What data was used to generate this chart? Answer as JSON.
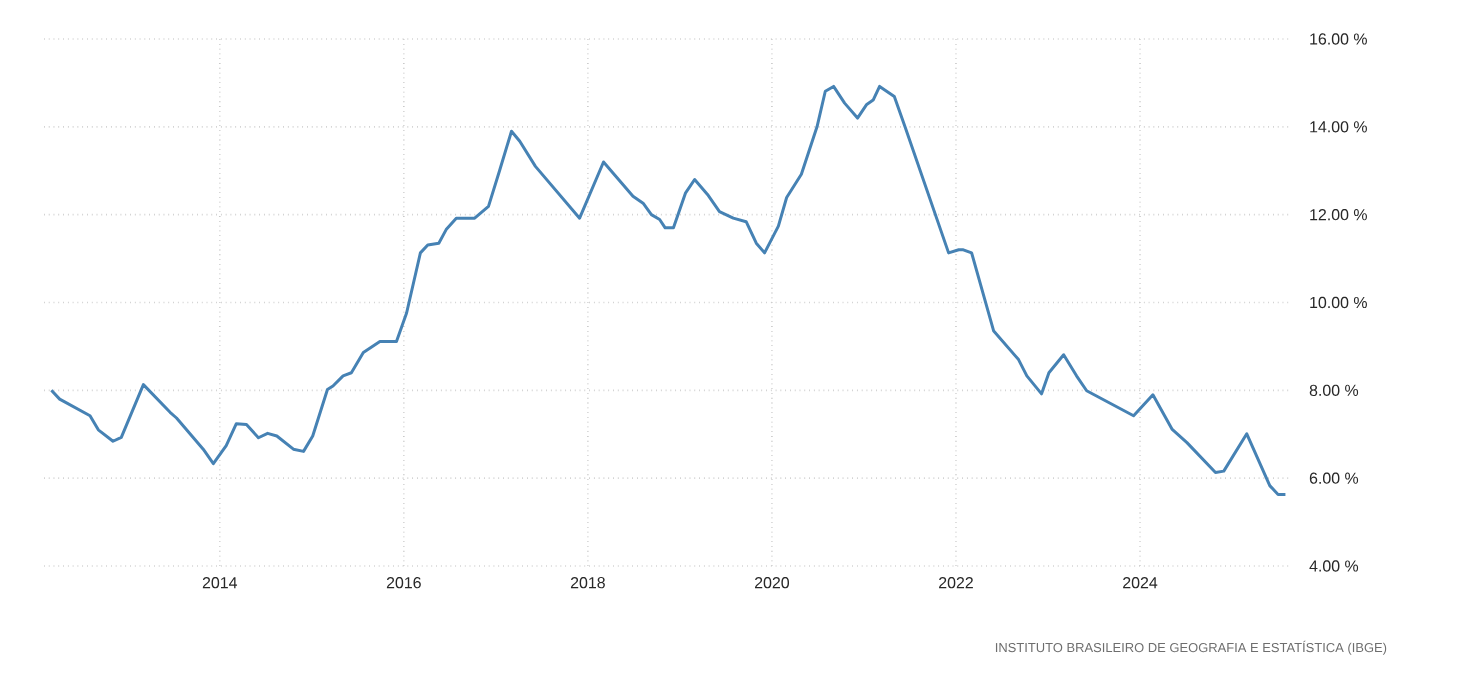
{
  "chart_data": {
    "type": "line",
    "annotations": [
      "INSTITUTO BRASILEIRO DE GEOGRAFIA E ESTATÍSTICA (IBGE)"
    ],
    "x": [
      2012.17,
      2012.26,
      2012.59,
      2012.68,
      2012.84,
      2012.93,
      2013.17,
      2013.46,
      2013.53,
      2013.82,
      2013.93,
      2014.07,
      2014.18,
      2014.29,
      2014.42,
      2014.52,
      2014.62,
      2014.8,
      2014.91,
      2015.01,
      2015.17,
      2015.23,
      2015.34,
      2015.43,
      2015.56,
      2015.74,
      2015.92,
      2016.03,
      2016.18,
      2016.26,
      2016.38,
      2016.46,
      2016.57,
      2016.77,
      2016.92,
      2017.04,
      2017.17,
      2017.26,
      2017.43,
      2017.91,
      2018.17,
      2018.49,
      2018.6,
      2018.69,
      2018.78,
      2018.84,
      2018.93,
      2019.06,
      2019.16,
      2019.3,
      2019.43,
      2019.58,
      2019.72,
      2019.83,
      2019.92,
      2020.07,
      2020.16,
      2020.32,
      2020.49,
      2020.58,
      2020.67,
      2020.79,
      2020.93,
      2021.03,
      2021.1,
      2021.17,
      2021.33,
      2021.45,
      2021.92,
      2022.03,
      2022.08,
      2022.17,
      2022.41,
      2022.68,
      2022.77,
      2022.93,
      2023.01,
      2023.17,
      2023.31,
      2023.42,
      2023.93,
      2024.14,
      2024.35,
      2024.51,
      2024.82,
      2024.91,
      2025.16,
      2025.41,
      2025.5,
      2025.58
    ],
    "series": [
      {
        "color": "#4682b4",
        "values": [
          8.0,
          7.8,
          7.42,
          7.1,
          6.84,
          6.93,
          8.13,
          7.5,
          7.37,
          6.66,
          6.33,
          6.74,
          7.24,
          7.22,
          6.92,
          7.02,
          6.96,
          6.66,
          6.61,
          6.96,
          8.02,
          8.1,
          8.33,
          8.4,
          8.86,
          9.11,
          9.11,
          9.76,
          11.13,
          11.31,
          11.35,
          11.66,
          11.92,
          11.92,
          12.19,
          13.0,
          13.9,
          13.67,
          13.1,
          11.92,
          13.2,
          12.42,
          12.26,
          12.0,
          11.89,
          11.7,
          11.7,
          12.49,
          12.8,
          12.46,
          12.07,
          11.92,
          11.84,
          11.35,
          11.13,
          11.74,
          12.39,
          12.92,
          14.0,
          14.81,
          14.92,
          14.54,
          14.2,
          14.51,
          14.61,
          14.92,
          14.69,
          13.98,
          11.13,
          11.2,
          11.2,
          11.13,
          9.35,
          8.7,
          8.33,
          7.92,
          8.4,
          8.81,
          8.33,
          7.99,
          7.42,
          7.9,
          7.11,
          6.81,
          6.13,
          6.16,
          7.01,
          5.83,
          5.63,
          5.63
        ]
      }
    ],
    "xlim": [
      2012.09,
      2025.63
    ],
    "xticks": [
      2014,
      2016,
      2018,
      2020,
      2022,
      2024
    ],
    "ylim": [
      4,
      16
    ],
    "yticks": [
      {
        "value": 4,
        "label": "4.00 %"
      },
      {
        "value": 6,
        "label": "6.00 %"
      },
      {
        "value": 8,
        "label": "8.00 %"
      },
      {
        "value": 10,
        "label": "10.00 %"
      },
      {
        "value": 12,
        "label": "12.00 %"
      },
      {
        "value": 14,
        "label": "14.00 %"
      },
      {
        "value": 16,
        "label": "16.00 %"
      }
    ],
    "grid": true,
    "legend": false,
    "marker": "none",
    "line_style": "solid"
  }
}
